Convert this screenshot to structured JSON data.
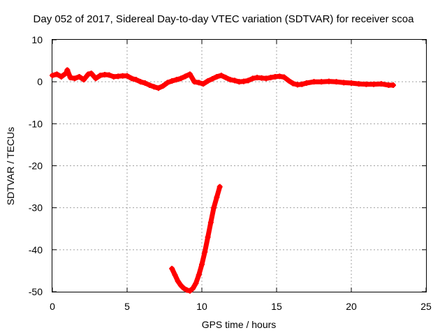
{
  "chart_data": {
    "type": "scatter",
    "title": "Day 052 of 2017, Sidereal Day-to-day VTEC variation (SDTVAR) for receiver scoa",
    "xlabel": "GPS time / hours",
    "ylabel": "SDTVAR / TECUs",
    "xlim": [
      0,
      25
    ],
    "ylim": [
      -50,
      10
    ],
    "xticks": [
      "0",
      "5",
      "10",
      "15",
      "20",
      "25"
    ],
    "yticks": [
      "10",
      "0",
      "-10",
      "-20",
      "-30",
      "-40",
      "-50"
    ],
    "grid": true,
    "series": [
      {
        "name": "main",
        "color": "#ff0000",
        "x": [
          0.0,
          0.3,
          0.6,
          0.9,
          1.0,
          1.2,
          1.5,
          1.8,
          2.1,
          2.4,
          2.6,
          2.9,
          3.2,
          3.5,
          3.8,
          4.1,
          4.4,
          4.7,
          5.0,
          5.3,
          5.6,
          5.9,
          6.2,
          6.5,
          6.8,
          7.1,
          7.4,
          7.7,
          8.0,
          8.3,
          8.6,
          8.9,
          9.2,
          9.5,
          9.8,
          10.1,
          10.4,
          10.7,
          11.0,
          11.3,
          11.6,
          11.9,
          12.2,
          12.5,
          12.8,
          13.1,
          13.4,
          13.7,
          14.0,
          14.3,
          14.6,
          14.9,
          15.2,
          15.5,
          15.8,
          16.1,
          16.4,
          16.7,
          17.0,
          17.5,
          18.0,
          18.5,
          19.0,
          19.5,
          20.0,
          20.5,
          21.0,
          21.5,
          22.0,
          22.5,
          22.8
        ],
        "y": [
          1.5,
          1.8,
          1.2,
          2.0,
          2.8,
          1.0,
          0.8,
          1.2,
          0.5,
          1.8,
          2.0,
          0.8,
          1.5,
          1.7,
          1.6,
          1.2,
          1.3,
          1.4,
          1.4,
          0.8,
          0.5,
          0.0,
          -0.3,
          -0.8,
          -1.2,
          -1.5,
          -1.0,
          -0.2,
          0.2,
          0.5,
          0.8,
          1.3,
          1.8,
          0.0,
          -0.2,
          -0.5,
          0.2,
          0.7,
          1.2,
          1.5,
          1.0,
          0.5,
          0.3,
          0.0,
          0.1,
          0.3,
          0.8,
          1.0,
          0.9,
          0.8,
          1.0,
          1.2,
          1.3,
          1.1,
          0.3,
          -0.4,
          -0.7,
          -0.6,
          -0.3,
          0.0,
          0.0,
          0.1,
          0.0,
          -0.2,
          -0.3,
          -0.5,
          -0.6,
          -0.6,
          -0.5,
          -0.8,
          -0.8
        ]
      },
      {
        "name": "dip",
        "color": "#ff0000",
        "x": [
          8.0,
          8.2,
          8.4,
          8.6,
          8.8,
          9.0,
          9.2,
          9.4,
          9.6,
          9.8,
          10.0,
          10.2,
          10.4,
          10.6,
          10.8,
          11.0,
          11.2
        ],
        "y": [
          -44.5,
          -46.0,
          -47.5,
          -48.5,
          -49.2,
          -49.6,
          -49.8,
          -49.2,
          -48.0,
          -46.0,
          -43.5,
          -40.5,
          -37.0,
          -33.5,
          -30.0,
          -27.5,
          -25.0
        ]
      }
    ]
  }
}
